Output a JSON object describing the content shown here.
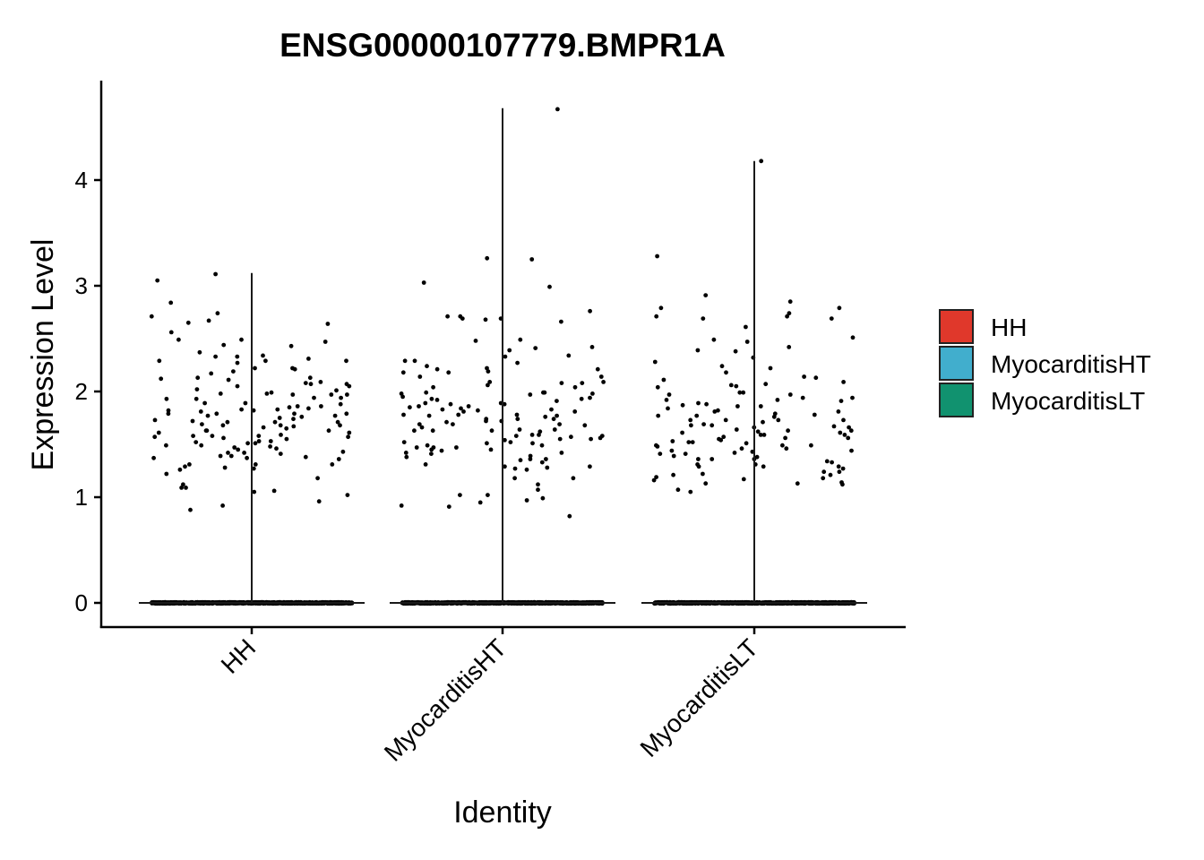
{
  "chart_data": {
    "type": "scatter",
    "title": "ENSG00000107779.BMPR1A",
    "xlabel": "Identity",
    "ylabel": "Expression Level",
    "categories": [
      "HH",
      "MyocarditisHT",
      "MyocarditisLT"
    ],
    "yticks": [
      0,
      1,
      2,
      3,
      4
    ],
    "ylim": [
      -0.23,
      4.9
    ],
    "grid": false,
    "legend_position": "right",
    "legend": [
      {
        "label": "HH",
        "color": "#e0382b"
      },
      {
        "label": "MyocarditisHT",
        "color": "#41aecd"
      },
      {
        "label": "MyocarditisLT",
        "color": "#11926f"
      }
    ],
    "series": [
      {
        "category": "HH",
        "max": 3.12,
        "zero_count": 900,
        "values": [
          2.67,
          2.29,
          2.22,
          2.13,
          2.07,
          1.97,
          1.86,
          1.83,
          1.79,
          1.71,
          1.68,
          1.58,
          1.46,
          1.31,
          2.84,
          2.74,
          2.49,
          2.47,
          2.31,
          2.29,
          2.12,
          2.11,
          2.05,
          1.97,
          1.93,
          1.88,
          1.82,
          1.76,
          1.71,
          1.68,
          1.66,
          1.63,
          1.58,
          1.53,
          1.51,
          1.42,
          1.39,
          1.37,
          1.22,
          1.05,
          0.96,
          2.49,
          2.44,
          2.37,
          2.33,
          2.21,
          2.07,
          1.98,
          1.93,
          1.85,
          1.79,
          1.77,
          1.72,
          1.63,
          1.59,
          1.56,
          1.53,
          1.49,
          1.45,
          1.39,
          1.31,
          1.29,
          1.26,
          1.02,
          3.11,
          3.05,
          2.71,
          2.22,
          2.13,
          2.08,
          2.05,
          1.99,
          1.94,
          1.89,
          1.83,
          1.79,
          1.74,
          1.69,
          1.65,
          1.63,
          1.58,
          1.55,
          1.51,
          1.47,
          1.43,
          1.37,
          1.31,
          1.18,
          1.09,
          2.64,
          2.33,
          2.29,
          2.17,
          2.09,
          2.02,
          1.97,
          1.89,
          1.84,
          1.81,
          1.77,
          1.73,
          1.68,
          1.61,
          1.57,
          1.52,
          1.48,
          1.41,
          1.36,
          1.27,
          1.12,
          0.92,
          2.65,
          2.56,
          2.43,
          2.34,
          2.27,
          2.19,
          2.01,
          1.98,
          1.94,
          1.86,
          1.82,
          1.79,
          1.75,
          1.71,
          1.67,
          1.61,
          1.57,
          1.49,
          1.42,
          1.38,
          1.28,
          1.09,
          1.06,
          0.88
        ]
      },
      {
        "category": "MyocarditisHT",
        "max": 4.68,
        "zero_count": 900,
        "values": [
          3.03,
          2.29,
          2.04,
          1.99,
          1.95,
          1.88,
          1.83,
          1.77,
          1.69,
          1.62,
          1.57,
          1.49,
          1.45,
          1.07,
          0.99,
          4.67,
          3.26,
          2.99,
          2.76,
          2.71,
          2.21,
          2.18,
          2.09,
          1.98,
          1.92,
          1.86,
          1.81,
          1.76,
          1.72,
          1.68,
          1.63,
          1.58,
          1.54,
          1.49,
          1.44,
          1.39,
          1.33,
          1.29,
          2.71,
          2.49,
          2.42,
          2.33,
          2.22,
          2.14,
          2.08,
          2.04,
          1.97,
          1.94,
          1.89,
          1.85,
          1.81,
          1.77,
          1.74,
          1.71,
          1.66,
          1.63,
          1.59,
          1.55,
          1.52,
          1.47,
          1.42,
          1.36,
          1.29,
          1.18,
          2.34,
          2.27,
          2.21,
          2.14,
          2.06,
          1.99,
          1.93,
          1.89,
          1.86,
          1.82,
          1.78,
          1.74,
          1.69,
          1.64,
          1.59,
          1.55,
          1.51,
          1.47,
          1.41,
          1.36,
          1.27,
          2.68,
          2.69,
          2.41,
          2.29,
          2.18,
          2.09,
          1.98,
          1.93,
          1.88,
          1.83,
          1.78,
          1.74,
          1.69,
          1.64,
          1.58,
          1.52,
          1.47,
          1.42,
          1.35,
          1.28,
          1.02,
          0.91,
          0.82,
          2.69,
          3.25,
          2.66,
          2.48,
          2.39,
          2.24,
          2.19,
          2.08,
          1.99,
          1.91,
          1.84,
          1.78,
          1.72,
          1.63,
          1.56,
          1.51,
          1.45,
          1.38,
          1.31,
          1.26,
          1.18,
          1.12,
          0.97,
          0.92,
          0.95,
          1.02
        ]
      },
      {
        "category": "MyocarditisLT",
        "max": 4.18,
        "zero_count": 900,
        "values": [
          2.79,
          2.69,
          1.77,
          1.67,
          1.61,
          1.53,
          1.49,
          1.46,
          1.41,
          1.36,
          1.29,
          1.21,
          2.71,
          2.71,
          2.47,
          2.22,
          2.13,
          1.94,
          1.89,
          1.81,
          1.73,
          1.63,
          1.59,
          1.55,
          1.49,
          1.44,
          1.39,
          1.33,
          1.29,
          1.21,
          1.07,
          1.05,
          2.91,
          2.69,
          2.28,
          2.05,
          1.97,
          1.92,
          1.86,
          1.79,
          1.73,
          1.68,
          1.63,
          1.59,
          1.56,
          1.52,
          1.48,
          1.44,
          1.38,
          1.34,
          1.29,
          1.24,
          1.19,
          1.13,
          4.18,
          2.74,
          2.42,
          2.38,
          2.18,
          2.11,
          2.06,
          1.99,
          1.94,
          1.88,
          1.84,
          1.78,
          1.73,
          1.68,
          1.64,
          1.59,
          1.54,
          1.49,
          1.42,
          1.36,
          1.24,
          1.17,
          1.14,
          2.85,
          2.79,
          2.61,
          2.51,
          2.32,
          2.24,
          2.09,
          2.04,
          1.97,
          1.91,
          1.86,
          1.81,
          1.76,
          1.71,
          1.66,
          1.62,
          1.56,
          1.51,
          1.43,
          1.31,
          1.27,
          1.18,
          1.13,
          3.28,
          2.49,
          2.39,
          2.14,
          2.07,
          1.99,
          1.92,
          1.87,
          1.82,
          1.77,
          1.73,
          1.69,
          1.66,
          1.61,
          1.57,
          1.52,
          1.46,
          1.41,
          1.36,
          1.31,
          1.22,
          1.16,
          1.12
        ]
      }
    ]
  }
}
